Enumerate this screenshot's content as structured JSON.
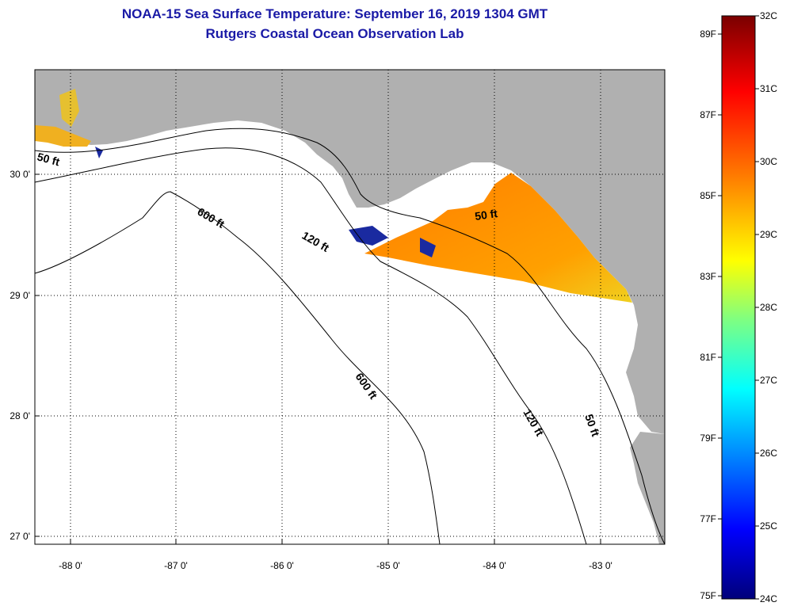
{
  "header": {
    "title": "NOAA-15 Sea Surface Temperature:  September 16, 2019 1304 GMT",
    "subtitle": "Rutgers Coastal Ocean Observation Lab"
  },
  "map": {
    "lon_labels": [
      "-88 0'",
      "-87 0'",
      "-86 0'",
      "-85 0'",
      "-84 0'",
      "-83 0'"
    ],
    "lat_labels": [
      "30 0'",
      "29 0'",
      "28 0'",
      "27 0'"
    ],
    "depth_labels": [
      {
        "id": "d50-west",
        "text": "50 ft"
      },
      {
        "id": "d600-north",
        "text": "600 ft"
      },
      {
        "id": "d120-north",
        "text": "120 ft"
      },
      {
        "id": "d50-east",
        "text": "50 ft"
      },
      {
        "id": "d600-south",
        "text": "600 ft"
      },
      {
        "id": "d120-south",
        "text": "120 ft"
      },
      {
        "id": "d50-south",
        "text": "50 ft"
      }
    ],
    "colors": {
      "land": "#b0b0b0",
      "ocean": "#ffffff",
      "grid": "#000000"
    }
  },
  "colorbar": {
    "celsius_labels": [
      "32C",
      "31C",
      "30C",
      "29C",
      "28C",
      "27C",
      "26C",
      "25C",
      "24C"
    ],
    "fahrenheit_labels": [
      "89F",
      "87F",
      "85F",
      "83F",
      "81F",
      "79F",
      "77F",
      "75F"
    ],
    "gradient_stops": [
      "#7a0000",
      "#ff0000",
      "#ff8000",
      "#ffff00",
      "#80ff80",
      "#00ffff",
      "#0080ff",
      "#0000ff",
      "#00007a"
    ]
  }
}
